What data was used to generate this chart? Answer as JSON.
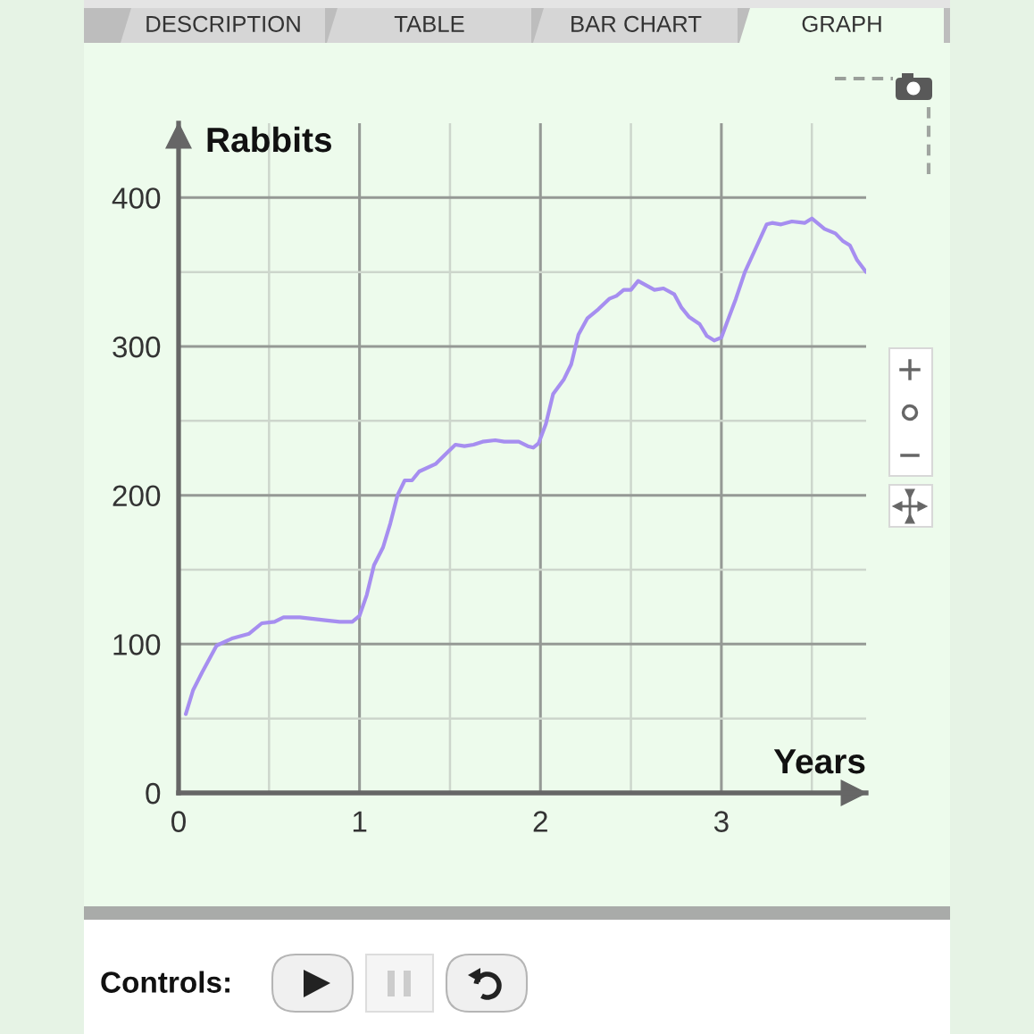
{
  "chart_data": {
    "type": "line",
    "xlabel": "Years",
    "ylabel": "Rabbits",
    "annotations": [
      "DESCRIPTION",
      "TABLE",
      "BAR CHART",
      "GRAPH",
      "Controls:"
    ],
    "x": [
      0.04,
      0.08,
      0.13,
      0.21,
      0.3,
      0.39,
      0.46,
      0.53,
      0.58,
      0.67,
      0.81,
      0.89,
      0.96,
      1.0,
      1.04,
      1.08,
      1.13,
      1.17,
      1.21,
      1.25,
      1.29,
      1.33,
      1.42,
      1.47,
      1.53,
      1.58,
      1.63,
      1.68,
      1.75,
      1.8,
      1.88,
      1.93,
      1.96,
      1.99,
      2.03,
      2.07,
      2.13,
      2.17,
      2.21,
      2.26,
      2.32,
      2.38,
      2.42,
      2.46,
      2.5,
      2.54,
      2.63,
      2.68,
      2.74,
      2.78,
      2.82,
      2.88,
      2.92,
      2.96,
      3.0,
      3.04,
      3.08,
      3.13,
      3.19,
      3.25,
      3.28,
      3.33,
      3.39,
      3.46,
      3.5,
      3.57,
      3.63,
      3.67,
      3.71,
      3.75,
      3.8
    ],
    "series": [
      {
        "color": "#a68ef0",
        "values": [
          53,
          69,
          81,
          99,
          104,
          107,
          114,
          115,
          118,
          118,
          116,
          115,
          115,
          119,
          133,
          153,
          165,
          181,
          200,
          210,
          210,
          216,
          221,
          227,
          234,
          233,
          234,
          236,
          237,
          236,
          236,
          233,
          232,
          235,
          248,
          268,
          278,
          288,
          308,
          319,
          325,
          332,
          334,
          338,
          338,
          344,
          338,
          339,
          335,
          326,
          320,
          315,
          307,
          304,
          306,
          319,
          332,
          350,
          366,
          382,
          383,
          382,
          384,
          383,
          386,
          379,
          376,
          371,
          368,
          358,
          350
        ]
      }
    ],
    "xlim": [
      0,
      3.8
    ],
    "ylim": [
      0,
      450
    ],
    "xticks": [
      0,
      {
        "value": 0.5,
        "label": null
      },
      1,
      {
        "value": 1.5,
        "label": null
      },
      2,
      {
        "value": 2.5,
        "label": null
      },
      3,
      {
        "value": 3.5,
        "label": null
      }
    ],
    "yticks": [
      0,
      {
        "value": 50,
        "label": null
      },
      100,
      {
        "value": 150,
        "label": null
      },
      200,
      {
        "value": 250,
        "label": null
      },
      300,
      {
        "value": 350,
        "label": null
      },
      400
    ],
    "grid": true
  }
}
